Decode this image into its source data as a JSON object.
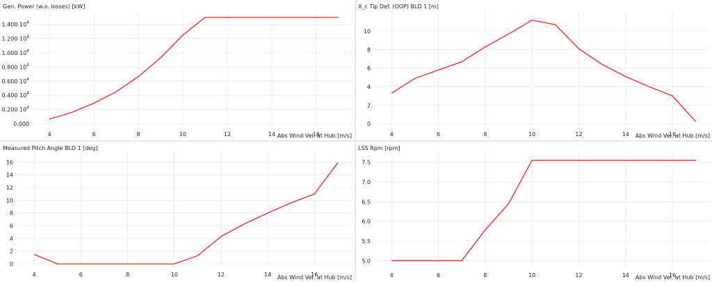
{
  "chart_data": [
    {
      "type": "line",
      "title": "Gen. Power (w.o. losses) [kW]",
      "xlabel": "Abs Wind Vel. at Hub [m/s]",
      "ylabel": "",
      "x_ticks": [
        "4",
        "6",
        "8",
        "10",
        "12",
        "14",
        "16"
      ],
      "y_ticks": [
        {
          "mantissa": "0.000",
          "exp": ""
        },
        {
          "mantissa": "0.200 10",
          "exp": "4"
        },
        {
          "mantissa": "0.400 10",
          "exp": "4"
        },
        {
          "mantissa": "0.600 10",
          "exp": "4"
        },
        {
          "mantissa": "0.800 10",
          "exp": "4"
        },
        {
          "mantissa": "1.000 10",
          "exp": "4"
        },
        {
          "mantissa": "1.200 10",
          "exp": "4"
        },
        {
          "mantissa": "1.400 10",
          "exp": "4"
        }
      ],
      "xlim": [
        3.4,
        17.6
      ],
      "ylim": [
        0,
        15000
      ],
      "grid": true,
      "color": "#ee2222",
      "series": [
        {
          "x": [
            4,
            5,
            6,
            7,
            8,
            9,
            10,
            11,
            12,
            13,
            14,
            15,
            16,
            17
          ],
          "y": [
            650,
            1580,
            2880,
            4500,
            6650,
            9300,
            12500,
            15000,
            15000,
            15000,
            15000,
            15000,
            15000,
            15000
          ]
        }
      ]
    },
    {
      "type": "line",
      "title": "X_c Tip Def. (OOP) BLD 1 [m]",
      "xlabel": "Abs Wind Vel. at Hub [m/s]",
      "ylabel": "",
      "x_ticks": [
        "4",
        "6",
        "8",
        "10",
        "12",
        "14",
        "16"
      ],
      "y_ticks": [
        "0",
        "2",
        "4",
        "6",
        "8",
        "10"
      ],
      "xlim": [
        3.4,
        17.6
      ],
      "ylim": [
        0,
        11.5
      ],
      "grid": true,
      "color": "#ee2222",
      "series": [
        {
          "x": [
            4,
            5,
            6,
            7,
            8,
            9,
            10,
            11,
            12,
            13,
            14,
            15,
            16,
            17
          ],
          "y": [
            3.3,
            4.9,
            5.8,
            6.7,
            8.3,
            9.7,
            11.2,
            10.7,
            8.1,
            6.4,
            5.1,
            4.0,
            3.0,
            0.2
          ]
        }
      ]
    },
    {
      "type": "line",
      "title": "Measured Pitch Angle BLD 1 [deg]",
      "xlabel": "Abs Wind Vel. at Hub [m/s]",
      "ylabel": "",
      "x_ticks": [
        "4",
        "6",
        "8",
        "10",
        "12",
        "14",
        "16"
      ],
      "y_ticks": [
        "0",
        "2",
        "4",
        "6",
        "8",
        "10",
        "12",
        "14",
        "16"
      ],
      "xlim": [
        3.4,
        17.6
      ],
      "ylim": [
        0,
        16.8
      ],
      "grid": true,
      "color": "#ee2222",
      "series": [
        {
          "x": [
            4,
            5,
            6,
            7,
            8,
            9,
            10,
            11,
            12,
            13,
            14,
            15,
            16,
            17
          ],
          "y": [
            1.5,
            0,
            0,
            0,
            0,
            0,
            0,
            1.3,
            4.3,
            6.3,
            8.0,
            9.6,
            11.0,
            15.9
          ]
        }
      ]
    },
    {
      "type": "line",
      "title": "LSS Rpm [rpm]",
      "xlabel": "Abs Wind Vel. at Hub [m/s]",
      "ylabel": "",
      "x_ticks": [
        "4",
        "6",
        "8",
        "10",
        "12",
        "14",
        "16"
      ],
      "y_ticks": [
        "5.0",
        "5.5",
        "6.0",
        "6.5",
        "7.0",
        "7.5"
      ],
      "xlim": [
        3.4,
        17.6
      ],
      "ylim": [
        4.9,
        7.6
      ],
      "grid": true,
      "color": "#ee2222",
      "series": [
        {
          "x": [
            4,
            5,
            6,
            7,
            8,
            9,
            10,
            11,
            12,
            13,
            14,
            15,
            16,
            17
          ],
          "y": [
            5.0,
            5.0,
            5.0,
            5.0,
            5.78,
            6.45,
            7.55,
            7.55,
            7.55,
            7.55,
            7.55,
            7.55,
            7.55,
            7.55
          ]
        }
      ]
    }
  ]
}
